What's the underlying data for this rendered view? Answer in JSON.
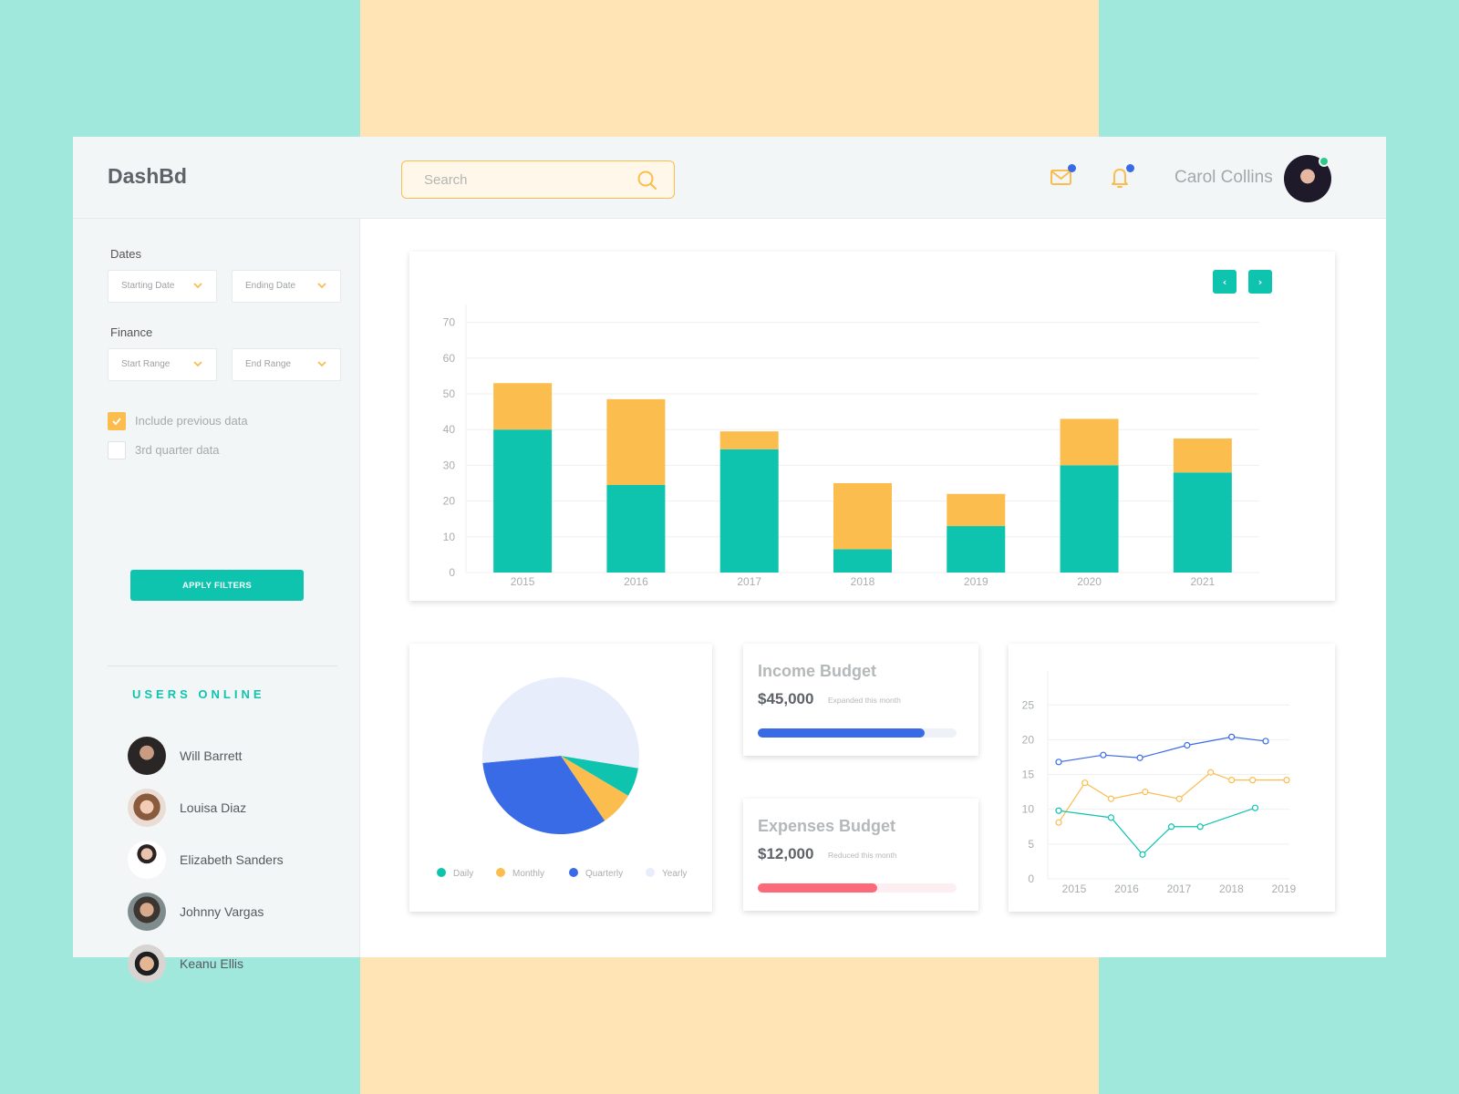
{
  "header": {
    "logo": "DashBd",
    "search_placeholder": "Search",
    "user_name": "Carol Collins",
    "icons": [
      "mail-icon",
      "bell-icon",
      "search-icon"
    ]
  },
  "sidebar": {
    "dates_label": "Dates",
    "start_date": "Starting Date",
    "end_date": "Ending Date",
    "finance_label": "Finance",
    "start_range": "Start Range",
    "end_range": "End Range",
    "checkboxes": [
      {
        "label": "Include previous data",
        "checked": true
      },
      {
        "label": "3rd quarter data",
        "checked": false
      }
    ],
    "apply_label": "APPLY FILTERS",
    "users_title": "USERS ONLINE",
    "users": [
      {
        "name": "Will Barrett"
      },
      {
        "name": "Louisa Diaz"
      },
      {
        "name": "Elizabeth Sanders"
      },
      {
        "name": "Johnny Vargas"
      },
      {
        "name": "Keanu Ellis"
      }
    ]
  },
  "main_chart": {
    "prev_label": "‹",
    "next_label": "›"
  },
  "colors": {
    "teal": "#0fc4ae",
    "amber": "#fbbd4e",
    "blue": "#3a6be6",
    "pale": "#e8edfc",
    "red": "#fc6a7a"
  },
  "pie": {
    "legend": [
      {
        "label": "Daily",
        "color": "#0fc4ae"
      },
      {
        "label": "Monthly",
        "color": "#fbbd4e"
      },
      {
        "label": "Quarterly",
        "color": "#3a6be6"
      },
      {
        "label": "Yearly",
        "color": "#e8edfc"
      }
    ]
  },
  "income": {
    "title": "Income Budget",
    "amount": "$45,000",
    "note": "Expanded this month",
    "progress": 0.84,
    "color": "#3a6be6",
    "track": "#eef2f8"
  },
  "expenses": {
    "title": "Expenses Budget",
    "amount": "$12,000",
    "note": "Reduced this month",
    "progress": 0.6,
    "color": "#fc6a7a",
    "track": "#fdeff1"
  },
  "chart_data": [
    {
      "type": "bar",
      "stacked": true,
      "categories": [
        "2015",
        "2016",
        "2017",
        "2018",
        "2019",
        "2020",
        "2021"
      ],
      "series": [
        {
          "color": "#0fc4ae",
          "values": [
            40,
            24.5,
            34.5,
            6.5,
            13,
            30,
            28
          ]
        },
        {
          "color": "#fbbd4e",
          "values": [
            13,
            24,
            5,
            18.5,
            9,
            13,
            9.5
          ]
        }
      ],
      "yticks": [
        0,
        10,
        20,
        30,
        40,
        50,
        60,
        70
      ],
      "ylim": [
        0,
        75
      ],
      "grid": true,
      "title": "",
      "xlabel": "",
      "ylabel": ""
    },
    {
      "type": "pie",
      "categories": [
        "Daily",
        "Monthly",
        "Quarterly",
        "Yearly"
      ],
      "values": [
        6,
        7,
        33,
        54
      ],
      "colors": [
        "#0fc4ae",
        "#fbbd4e",
        "#3a6be6",
        "#e8edfc"
      ],
      "legend": "bottom"
    },
    {
      "type": "line",
      "xticks": [
        "2015",
        "2016",
        "2017",
        "2018",
        "2019"
      ],
      "xlim": [
        2015,
        2019.35
      ],
      "yticks": [
        0,
        5,
        10,
        15,
        20,
        25
      ],
      "ylim": [
        0,
        27
      ],
      "grid": true,
      "series": [
        {
          "color": "#3a6be6",
          "x": [
            2015,
            2015.85,
            2016.55,
            2017.45,
            2018.3,
            2018.95
          ],
          "y": [
            16.8,
            17.8,
            17.4,
            19.2,
            20.4,
            19.8
          ]
        },
        {
          "color": "#fbbd4e",
          "x": [
            2015,
            2015.5,
            2016,
            2016.65,
            2017.3,
            2017.9,
            2018.3,
            2018.7,
            2019.35
          ],
          "y": [
            8.1,
            13.8,
            11.5,
            12.5,
            11.5,
            15.3,
            14.2,
            14.2,
            14.2
          ]
        },
        {
          "color": "#0fc4ae",
          "x": [
            2015,
            2016,
            2016.6,
            2017.15,
            2017.7,
            2018.75
          ],
          "y": [
            9.8,
            8.8,
            3.5,
            7.5,
            7.5,
            10.2
          ]
        }
      ],
      "title": "",
      "xlabel": "",
      "ylabel": ""
    }
  ]
}
